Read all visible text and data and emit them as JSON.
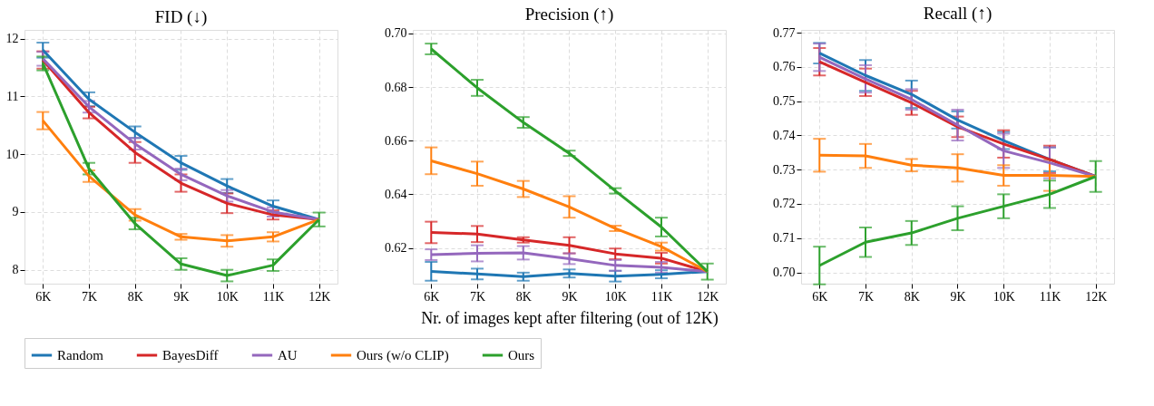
{
  "chart_data": [
    {
      "type": "line",
      "title": "FID (↓)",
      "categories": [
        "6K",
        "7K",
        "8K",
        "9K",
        "10K",
        "11K",
        "12K"
      ],
      "ylim": [
        7.76,
        12.15
      ],
      "yticks": [
        8,
        9,
        10,
        11,
        12
      ],
      "grid": true,
      "legend": "bottom",
      "line_style": "solid",
      "marker": "none",
      "series": [
        {
          "name": "Random",
          "color": "#1f77b4",
          "values": [
            11.8,
            10.95,
            10.38,
            9.85,
            9.45,
            9.1,
            8.87
          ],
          "errors": [
            0.13,
            0.12,
            0.1,
            0.12,
            0.12,
            0.1,
            null
          ]
        },
        {
          "name": "BayesDiff",
          "color": "#d62728",
          "values": [
            11.63,
            10.72,
            10.03,
            9.5,
            9.15,
            8.95,
            8.87
          ],
          "errors": [
            0.15,
            0.1,
            0.18,
            0.15,
            0.17,
            0.08,
            null
          ]
        },
        {
          "name": "AU",
          "color": "#9467bd",
          "values": [
            11.65,
            10.82,
            10.18,
            9.65,
            9.28,
            9.0,
            8.87
          ],
          "errors": [
            0.12,
            0.1,
            0.1,
            0.1,
            0.1,
            0.08,
            null
          ]
        },
        {
          "name": "Ours (w/o CLIP)",
          "color": "#ff7f0e",
          "values": [
            10.58,
            9.62,
            8.95,
            8.57,
            8.5,
            8.57,
            8.87
          ],
          "errors": [
            0.15,
            0.1,
            0.1,
            0.05,
            0.1,
            0.08,
            null
          ]
        },
        {
          "name": "Ours",
          "color": "#2ca02c",
          "values": [
            11.57,
            9.75,
            8.8,
            8.1,
            7.9,
            8.08,
            8.87
          ],
          "errors": [
            0.12,
            0.1,
            0.1,
            0.1,
            0.1,
            0.1,
            0.12
          ]
        }
      ]
    },
    {
      "type": "line",
      "title": "Precision (↑)",
      "xlabel": "Nr. of images kept after filtering (out of 12K)",
      "categories": [
        "6K",
        "7K",
        "8K",
        "9K",
        "10K",
        "11K",
        "12K"
      ],
      "ylim": [
        0.6067,
        0.7013
      ],
      "yticks": [
        {
          "value": 0.62,
          "label": "0.62"
        },
        {
          "value": 0.64,
          "label": "0.64"
        },
        {
          "value": 0.66,
          "label": "0.66"
        },
        {
          "value": 0.68,
          "label": "0.68"
        },
        {
          "value": 0.7,
          "label": "0.70"
        }
      ],
      "grid": true,
      "legend": "bottom",
      "line_style": "solid",
      "marker": "none",
      "series": [
        {
          "name": "Random",
          "color": "#1f77b4",
          "values": [
            0.6113,
            0.6103,
            0.6093,
            0.6105,
            0.6095,
            0.6102,
            0.6112
          ],
          "errors": [
            0.0035,
            0.002,
            0.0015,
            0.0015,
            0.002,
            0.0015,
            null
          ]
        },
        {
          "name": "BayesDiff",
          "color": "#d62728",
          "values": [
            0.6258,
            0.6252,
            0.623,
            0.621,
            0.6178,
            0.6162,
            0.6112
          ],
          "errors": [
            0.004,
            0.003,
            0.001,
            0.003,
            0.002,
            0.002,
            null
          ]
        },
        {
          "name": "AU",
          "color": "#9467bd",
          "values": [
            0.6175,
            0.618,
            0.6182,
            0.616,
            0.6135,
            0.6128,
            0.6112
          ],
          "errors": [
            0.002,
            0.003,
            0.0025,
            0.002,
            0.002,
            0.002,
            null
          ]
        },
        {
          "name": "Ours (w/o CLIP)",
          "color": "#ff7f0e",
          "values": [
            0.6525,
            0.6477,
            0.642,
            0.6353,
            0.6273,
            0.6205,
            0.6112
          ],
          "errors": [
            0.005,
            0.0045,
            0.003,
            0.004,
            0.001,
            0.0015,
            null
          ]
        },
        {
          "name": "Ours",
          "color": "#2ca02c",
          "values": [
            0.6942,
            0.6797,
            0.6668,
            0.6553,
            0.6413,
            0.6278,
            0.6112
          ],
          "errors": [
            0.002,
            0.003,
            0.002,
            0.001,
            0.001,
            0.0035,
            0.003
          ]
        }
      ]
    },
    {
      "type": "line",
      "title": "Recall (↑)",
      "categories": [
        "6K",
        "7K",
        "8K",
        "9K",
        "10K",
        "11K",
        "12K"
      ],
      "ylim": [
        0.6967,
        0.7708
      ],
      "yticks": [
        {
          "value": 0.7,
          "label": "0.70"
        },
        0.71,
        0.72,
        0.73,
        0.74,
        0.75,
        0.76,
        0.77
      ],
      "grid": true,
      "legend": "bottom",
      "line_style": "solid",
      "marker": "none",
      "series": [
        {
          "name": "Random",
          "color": "#1f77b4",
          "values": [
            0.764,
            0.7575,
            0.752,
            0.7445,
            0.7385,
            0.733,
            0.728
          ],
          "errors": [
            0.003,
            0.0045,
            0.004,
            0.0025,
            0.0025,
            0.0035,
            null
          ]
        },
        {
          "name": "BayesDiff",
          "color": "#d62728",
          "values": [
            0.7615,
            0.7555,
            0.7495,
            0.7425,
            0.7375,
            0.733,
            0.728
          ],
          "errors": [
            0.004,
            0.004,
            0.0035,
            0.003,
            0.004,
            0.004,
            null
          ]
        },
        {
          "name": "AU",
          "color": "#9467bd",
          "values": [
            0.7628,
            0.7565,
            0.7505,
            0.743,
            0.7355,
            0.732,
            0.728
          ],
          "errors": [
            0.004,
            0.004,
            0.003,
            0.0045,
            0.005,
            0.0045,
            null
          ]
        },
        {
          "name": "Ours (w/o CLIP)",
          "color": "#ff7f0e",
          "values": [
            0.7342,
            0.734,
            0.7313,
            0.7305,
            0.7283,
            0.7283,
            0.728
          ],
          "errors": [
            0.0048,
            0.0035,
            0.0018,
            0.004,
            0.003,
            0.0045,
            null
          ]
        },
        {
          "name": "Ours",
          "color": "#2ca02c",
          "values": [
            0.702,
            0.7088,
            0.7115,
            0.7158,
            0.7193,
            0.7228,
            0.728
          ],
          "errors": [
            0.0055,
            0.0043,
            0.0035,
            0.0035,
            0.0035,
            0.004,
            0.0045
          ]
        }
      ]
    }
  ]
}
